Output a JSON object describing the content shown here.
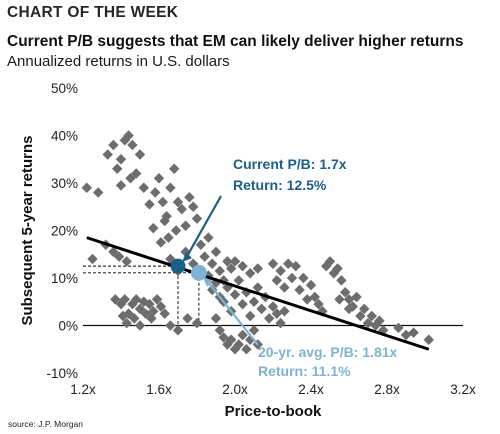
{
  "header": {
    "kicker": "CHART OF THE WEEK",
    "title": "Current P/B suggests that EM can likely deliver higher returns",
    "subtitle": "Annualized returns in U.S. dollars"
  },
  "footer": {
    "source": "source: J.P. Morgan"
  },
  "colors": {
    "points": "#6d6d6d",
    "trend": "#000000",
    "current": "#1c5f86",
    "average": "#7fb3d3",
    "guides": "#000000"
  },
  "chart_data": {
    "type": "scatter",
    "title": "Current P/B suggests that EM can likely deliver higher returns",
    "subtitle": "Annualized returns in U.S. dollars",
    "xlabel": "Price-to-book",
    "ylabel": "Subsequent 5-year returns",
    "xlim": [
      1.2,
      3.2
    ],
    "ylim": [
      -10,
      50
    ],
    "x_ticks": [
      1.2,
      1.6,
      2.0,
      2.4,
      2.8,
      3.2
    ],
    "x_tick_labels": [
      "1.2x",
      "1.6x",
      "2.0x",
      "2.4x",
      "2.8x",
      "3.2x"
    ],
    "y_ticks": [
      -10,
      0,
      10,
      20,
      30,
      40,
      50
    ],
    "y_tick_labels": [
      "-10%",
      "0%",
      "10%",
      "20%",
      "30%",
      "40%",
      "50%"
    ],
    "grid": false,
    "points": [
      [
        1.22,
        29
      ],
      [
        1.25,
        14
      ],
      [
        1.28,
        28
      ],
      [
        1.32,
        17
      ],
      [
        1.36,
        15.5
      ],
      [
        1.39,
        14.5
      ],
      [
        1.43,
        13.5
      ],
      [
        1.33,
        36
      ],
      [
        1.36,
        38
      ],
      [
        1.38,
        33
      ],
      [
        1.4,
        35
      ],
      [
        1.42,
        39
      ],
      [
        1.44,
        40
      ],
      [
        1.46,
        38
      ],
      [
        1.48,
        32
      ],
      [
        1.45,
        31
      ],
      [
        1.5,
        36
      ],
      [
        1.52,
        29
      ],
      [
        1.4,
        29.5
      ],
      [
        1.37,
        5.5
      ],
      [
        1.4,
        4.5
      ],
      [
        1.42,
        5.5
      ],
      [
        1.44,
        2.5
      ],
      [
        1.46,
        4.5
      ],
      [
        1.48,
        5.5
      ],
      [
        1.5,
        3.5
      ],
      [
        1.52,
        5
      ],
      [
        1.41,
        2
      ],
      [
        1.47,
        1.5
      ],
      [
        1.53,
        2.5
      ],
      [
        1.55,
        4.5
      ],
      [
        1.57,
        3
      ],
      [
        1.59,
        5.5
      ],
      [
        1.61,
        4
      ],
      [
        1.43,
        0.5
      ],
      [
        1.5,
        0
      ],
      [
        1.56,
        1.5
      ],
      [
        1.63,
        2.5
      ],
      [
        1.55,
        25.5
      ],
      [
        1.58,
        28
      ],
      [
        1.6,
        31
      ],
      [
        1.62,
        26
      ],
      [
        1.64,
        23
      ],
      [
        1.66,
        29
      ],
      [
        1.68,
        33
      ],
      [
        1.7,
        26
      ],
      [
        1.72,
        24.5
      ],
      [
        1.74,
        21
      ],
      [
        1.76,
        27
      ],
      [
        1.78,
        25
      ],
      [
        1.8,
        22.5
      ],
      [
        1.63,
        22
      ],
      [
        1.57,
        20.5
      ],
      [
        1.61,
        17.5
      ],
      [
        1.65,
        18.5
      ],
      [
        1.69,
        20
      ],
      [
        1.66,
        14
      ],
      [
        1.7,
        11.5
      ],
      [
        1.74,
        15.5
      ],
      [
        1.78,
        13
      ],
      [
        1.82,
        17
      ],
      [
        1.86,
        18.5
      ],
      [
        1.84,
        14.5
      ],
      [
        1.88,
        13
      ],
      [
        1.9,
        15.5
      ],
      [
        1.92,
        11.5
      ],
      [
        1.94,
        9.5
      ],
      [
        1.96,
        13.5
      ],
      [
        1.98,
        12
      ],
      [
        1.66,
        0
      ],
      [
        1.7,
        -1
      ],
      [
        1.75,
        1.5
      ],
      [
        1.8,
        0.5
      ],
      [
        1.86,
        10.5
      ],
      [
        1.88,
        7.5
      ],
      [
        1.9,
        9
      ],
      [
        1.92,
        6
      ],
      [
        1.94,
        5
      ],
      [
        1.96,
        8
      ],
      [
        1.98,
        3
      ],
      [
        1.9,
        1.5
      ],
      [
        1.92,
        -1
      ],
      [
        1.94,
        -2.5
      ],
      [
        1.96,
        -4
      ],
      [
        1.98,
        -3
      ],
      [
        2.0,
        -5
      ],
      [
        2.02,
        -4
      ],
      [
        2.04,
        -2
      ],
      [
        2.06,
        -5
      ],
      [
        2.08,
        -3
      ],
      [
        2.1,
        -1
      ],
      [
        2.12,
        -4
      ],
      [
        2.0,
        6.5
      ],
      [
        2.02,
        9.5
      ],
      [
        2.04,
        4.5
      ],
      [
        2.06,
        7
      ],
      [
        2.08,
        2
      ],
      [
        2.1,
        5
      ],
      [
        2.12,
        8
      ],
      [
        2.14,
        3.5
      ],
      [
        2.16,
        6
      ],
      [
        2.18,
        1.5
      ],
      [
        2.2,
        4
      ],
      [
        2.22,
        2.5
      ],
      [
        2.24,
        0.5
      ],
      [
        2.26,
        3
      ],
      [
        2.0,
        13.5
      ],
      [
        2.04,
        12.5
      ],
      [
        2.08,
        11
      ],
      [
        2.12,
        12
      ],
      [
        2.2,
        13
      ],
      [
        2.22,
        9.5
      ],
      [
        2.24,
        11.5
      ],
      [
        2.26,
        8
      ],
      [
        2.28,
        13
      ],
      [
        2.3,
        10
      ],
      [
        2.32,
        12.5
      ],
      [
        2.34,
        7.5
      ],
      [
        2.36,
        10
      ],
      [
        2.38,
        5.5
      ],
      [
        2.4,
        8.5
      ],
      [
        2.42,
        6
      ],
      [
        2.44,
        4.5
      ],
      [
        2.46,
        3
      ],
      [
        2.48,
        12.5
      ],
      [
        2.5,
        13.5
      ],
      [
        2.52,
        11
      ],
      [
        2.54,
        12
      ],
      [
        2.56,
        9.5
      ],
      [
        2.58,
        7
      ],
      [
        2.6,
        5.5
      ],
      [
        2.62,
        4
      ],
      [
        2.64,
        6
      ],
      [
        2.66,
        2
      ],
      [
        2.68,
        3.5
      ],
      [
        2.7,
        0.5
      ],
      [
        2.72,
        2
      ],
      [
        2.74,
        0
      ],
      [
        2.76,
        1
      ],
      [
        2.78,
        -1
      ],
      [
        2.86,
        -0.5
      ],
      [
        2.9,
        -2
      ],
      [
        2.94,
        -1.5
      ],
      [
        3.02,
        -3
      ],
      [
        2.55,
        5.5
      ],
      [
        2.6,
        3.5
      ]
    ],
    "trend_line": {
      "x": [
        1.22,
        3.02
      ],
      "y": [
        18.5,
        -5
      ]
    },
    "highlights": [
      {
        "name": "Current",
        "x": 1.7,
        "y": 12.5,
        "label_line1": "Current P/B: 1.7x",
        "label_line2": "Return: 12.5%"
      },
      {
        "name": "20-yr. avg.",
        "x": 1.81,
        "y": 11.1,
        "label_line1": "20-yr. avg. P/B: 1.81x",
        "label_line2": "Return: 11.1%"
      }
    ]
  }
}
